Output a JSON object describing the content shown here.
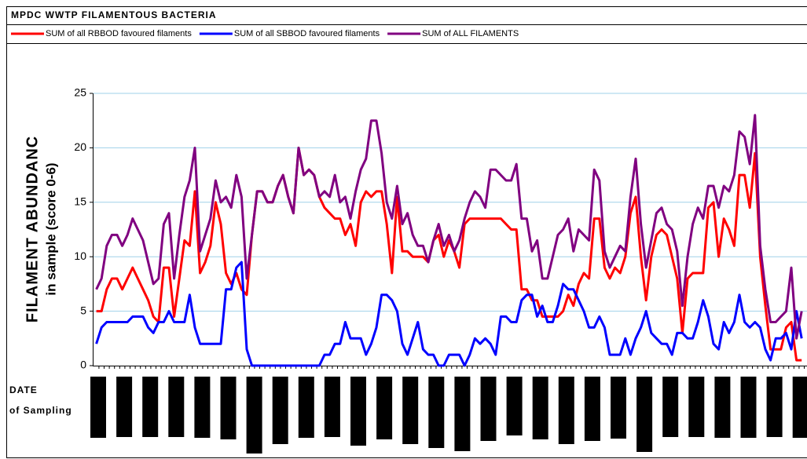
{
  "chart_data": {
    "type": "line",
    "title": "MPDC WWTP FILAMENTOUS BACTERIA",
    "y_label": [
      "FILAMENT ABUNDANC",
      "in sample (score 0-6)"
    ],
    "x_label": [
      "DATE",
      "of Sampling"
    ],
    "categories": [
      null,
      null,
      null,
      null,
      null,
      null,
      null,
      null,
      null,
      null,
      null,
      null,
      null,
      null,
      null,
      null,
      null,
      null,
      null,
      null,
      null,
      null,
      null,
      null,
      null,
      null,
      null,
      null,
      null,
      null,
      null,
      null,
      null,
      null,
      null,
      null,
      null,
      null,
      null,
      null,
      null,
      null,
      null,
      null,
      null,
      null,
      null,
      null,
      null,
      null,
      null,
      null,
      null,
      null,
      null,
      null,
      null,
      null,
      null,
      null,
      null,
      null,
      null,
      null,
      null,
      null,
      null,
      null,
      null,
      null,
      null,
      null,
      null,
      null,
      null,
      null,
      null,
      null,
      null,
      null,
      null,
      null,
      null,
      null,
      null,
      null,
      null,
      null,
      null,
      null,
      null,
      null,
      null,
      null,
      null,
      null,
      null,
      null,
      null,
      null,
      null,
      null,
      null,
      null,
      null,
      null,
      null,
      null,
      null,
      null,
      null,
      null,
      null,
      null,
      null,
      null,
      null,
      null,
      null,
      null,
      null,
      null,
      null,
      null,
      null,
      null,
      null,
      null,
      null,
      null,
      null,
      null,
      null,
      null,
      null,
      null,
      null
    ],
    "series": [
      {
        "name": "SUM of all RBBOD favoured filaments",
        "color": "#ff0000",
        "values": [
          5,
          5,
          7,
          8,
          8,
          7,
          8,
          9,
          8,
          7,
          6,
          4.5,
          4,
          9,
          9,
          4.5,
          8,
          11.5,
          11,
          16,
          8.5,
          9.5,
          11,
          15,
          13,
          8.5,
          7.5,
          8.5,
          7,
          6.5,
          12,
          16,
          16,
          15,
          15,
          16.5,
          17.5,
          15.5,
          14,
          20,
          17.5,
          18,
          17.5,
          15.5,
          14.5,
          14,
          13.5,
          13.5,
          12,
          13,
          11,
          15,
          16,
          15.5,
          16,
          16,
          13,
          8.5,
          15.5,
          10.5,
          10.5,
          10,
          10,
          10,
          9.5,
          11.5,
          12,
          10,
          11.5,
          10.5,
          9,
          13,
          13.5,
          13.5,
          13.5,
          13.5,
          13.5,
          13.5,
          13.5,
          13,
          12.5,
          12.5,
          7,
          7,
          6,
          6,
          4.5,
          4.5,
          4.5,
          4.5,
          5,
          6.5,
          5.5,
          7.5,
          8.5,
          8,
          13.5,
          13.5,
          9,
          8,
          9,
          8.5,
          10,
          14,
          15.5,
          10,
          6,
          10,
          12,
          12.5,
          12,
          10,
          8,
          3,
          8,
          8.5,
          8.5,
          8.5,
          14.5,
          15,
          10,
          13.5,
          12.5,
          11,
          17.5,
          17.5,
          14.5,
          19.5,
          10,
          5.5,
          1.5,
          1.5,
          1.5,
          3.5,
          4,
          0.5,
          0.5
        ]
      },
      {
        "name": "SUM of all SBBOD favoured filaments",
        "color": "#0000ff",
        "values": [
          2,
          3.5,
          4,
          4,
          4,
          4,
          4,
          4.5,
          4.5,
          4.5,
          3.5,
          3,
          4,
          4,
          5,
          4,
          4,
          4,
          6.5,
          3.5,
          2,
          2,
          2,
          2,
          2,
          7,
          7,
          9,
          9.5,
          1.5,
          0,
          0,
          0,
          0,
          0,
          0,
          0,
          0,
          0,
          0,
          0,
          0,
          0,
          0,
          1,
          1,
          2,
          2,
          4,
          2.5,
          2.5,
          2.5,
          1,
          2,
          3.5,
          6.5,
          6.5,
          6,
          5,
          2,
          1,
          2.5,
          4,
          1.5,
          1,
          1,
          0,
          0,
          1,
          1,
          1,
          0,
          1,
          2.5,
          2,
          2.5,
          2,
          1,
          4.5,
          4.5,
          4,
          4,
          6,
          6.5,
          6.5,
          4.5,
          5.5,
          4,
          4,
          5.5,
          7.5,
          7,
          7,
          6,
          5,
          3.5,
          3.5,
          4.5,
          3.5,
          1,
          1,
          1,
          2.5,
          1,
          2.5,
          3.5,
          5,
          3,
          2.5,
          2,
          2,
          1,
          3,
          3,
          2.5,
          2.5,
          4,
          6,
          4.5,
          2,
          1.5,
          4,
          3,
          4,
          6.5,
          4,
          3.5,
          4,
          3.5,
          1.5,
          0.5,
          2.5,
          2.5,
          3,
          1.5,
          5,
          2.5
        ]
      },
      {
        "name": "SUM of ALL FILAMENTS",
        "color": "#800080",
        "values": [
          7,
          8,
          11,
          12,
          12,
          11,
          12,
          13.5,
          12.5,
          11.5,
          9.5,
          7.5,
          8,
          13,
          14,
          8,
          12,
          15.5,
          17,
          20,
          10.5,
          12,
          13.5,
          17,
          15,
          15.5,
          14.5,
          17.5,
          15.5,
          8,
          12,
          16,
          16,
          15,
          15,
          16.5,
          17.5,
          15.5,
          14,
          20,
          17.5,
          18,
          17.5,
          15.5,
          16,
          15.5,
          17.5,
          15,
          15.5,
          13.5,
          16,
          18,
          19,
          22.5,
          22.5,
          19.5,
          15,
          13.5,
          16.5,
          13,
          14,
          12,
          11,
          11,
          9.5,
          11.5,
          13,
          11,
          12,
          10.5,
          11.5,
          13.5,
          15,
          16,
          15.5,
          14.5,
          18,
          18,
          17.5,
          17,
          17,
          18.5,
          13.5,
          13.5,
          10.5,
          11.5,
          8,
          8,
          10,
          12,
          12.5,
          13.5,
          10.5,
          12.5,
          12,
          11.5,
          18,
          17,
          10.5,
          9,
          10,
          11,
          10.5,
          15.5,
          19,
          13,
          9,
          11.5,
          14,
          14.5,
          13,
          12.5,
          10.5,
          5.5,
          10,
          13,
          14.5,
          13.5,
          16.5,
          16.5,
          14.5,
          16.5,
          16,
          17.5,
          21.5,
          21,
          18.5,
          23,
          11,
          7,
          4,
          4,
          4.5,
          5,
          9,
          2.5,
          5
        ]
      }
    ],
    "ylim": [
      0,
      25
    ],
    "yticks": [
      0,
      5,
      10,
      15,
      20,
      25
    ],
    "grid": true
  }
}
